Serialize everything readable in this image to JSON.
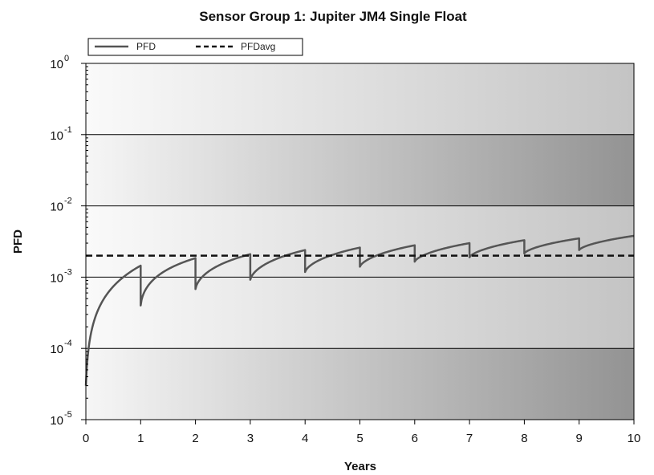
{
  "chart_data": {
    "type": "line",
    "title": "Sensor Group 1: Jupiter JM4 Single Float",
    "xlabel": "Years",
    "ylabel": "PFD",
    "xlim": [
      0,
      10
    ],
    "ylim": [
      1e-05,
      1
    ],
    "yscale": "log",
    "x_ticks": [
      "0",
      "1",
      "2",
      "3",
      "4",
      "5",
      "6",
      "7",
      "8",
      "9",
      "10"
    ],
    "y_ticks": [
      {
        "base": "10",
        "exp": "0",
        "value": 1
      },
      {
        "base": "10",
        "exp": "-1",
        "value": 0.1
      },
      {
        "base": "10",
        "exp": "-2",
        "value": 0.01
      },
      {
        "base": "10",
        "exp": "-3",
        "value": 0.001
      },
      {
        "base": "10",
        "exp": "-4",
        "value": 0.0001
      },
      {
        "base": "10",
        "exp": "-5",
        "value": 1e-05
      }
    ],
    "legend": {
      "position": "top-left",
      "entries": [
        "PFD",
        "PFDavg"
      ]
    },
    "bands": [
      {
        "from": 0.1,
        "to": 1,
        "shade": "light"
      },
      {
        "from": 0.01,
        "to": 0.1,
        "shade": "dark"
      },
      {
        "from": 0.001,
        "to": 0.01,
        "shade": "light"
      },
      {
        "from": 0.0001,
        "to": 0.001,
        "shade": "light"
      },
      {
        "from": 1e-05,
        "to": 0.0001,
        "shade": "dark"
      }
    ],
    "series": [
      {
        "name": "PFD",
        "style": "solid",
        "interval_start_pfd": [
          3e-05,
          0.0004,
          0.00068,
          0.00092,
          0.00118,
          0.0014,
          0.00165,
          0.0019,
          0.00215,
          0.0024
        ],
        "interval_end_pfd": [
          0.00145,
          0.00185,
          0.0021,
          0.0024,
          0.0026,
          0.0028,
          0.003,
          0.0033,
          0.0035,
          0.0038
        ]
      },
      {
        "name": "PFDavg",
        "style": "dashed",
        "x": [
          0,
          10
        ],
        "values": [
          0.002,
          0.002
        ]
      }
    ],
    "colors": {
      "pfd_line": "#555555",
      "avg_line": "#111111",
      "band_dark": "#999999",
      "band_light": "#f7f7f7",
      "gridline": "#000000"
    }
  }
}
